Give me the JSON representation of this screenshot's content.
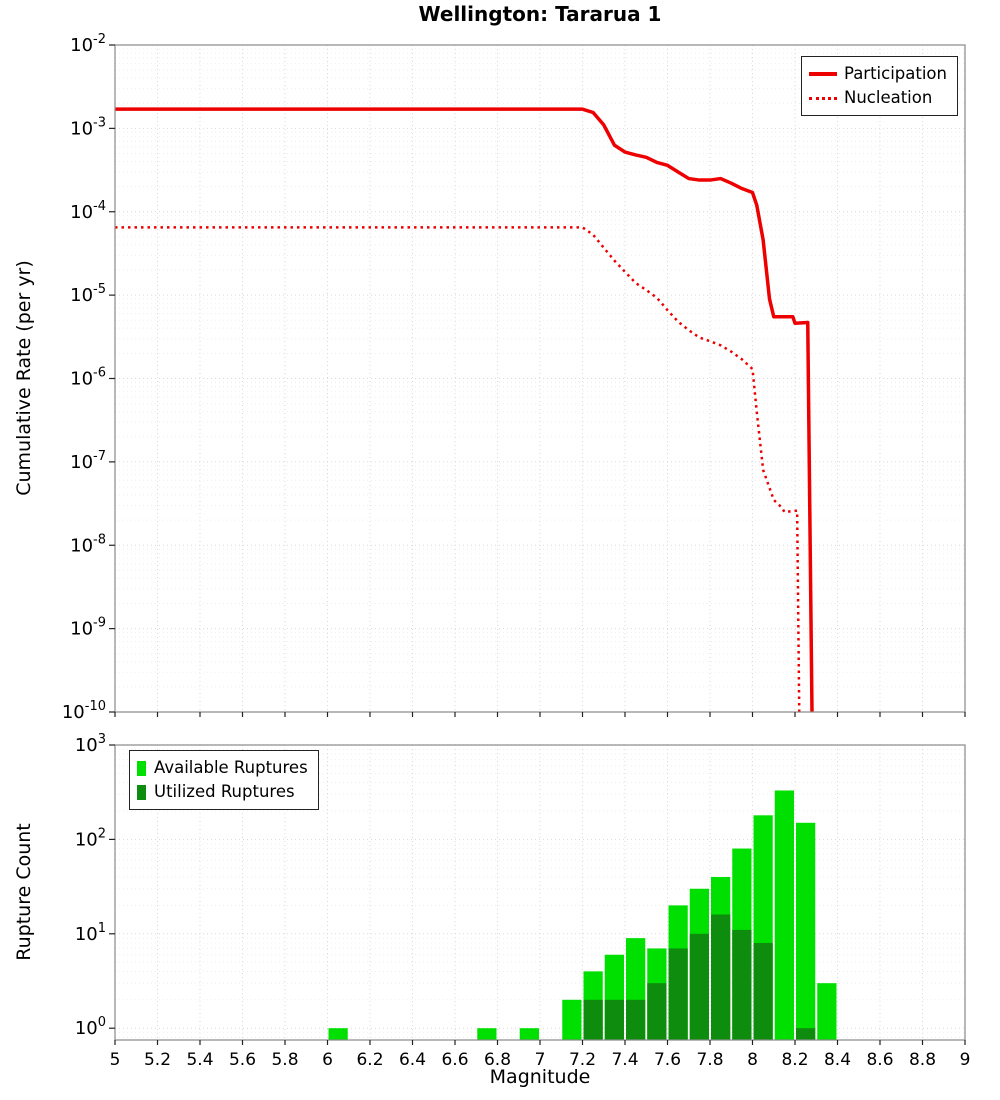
{
  "figure": {
    "title": "Wellington: Tararua 1",
    "xlabel": "Magnitude"
  },
  "chart_data": [
    {
      "type": "line",
      "title": "Wellington: Tararua 1",
      "ylabel": "Cumulative Rate (per yr)",
      "xlabel": "",
      "xlim": [
        5,
        9
      ],
      "x_tick_step": 0.2,
      "yscale": "log",
      "ylim": [
        1e-10,
        0.01
      ],
      "grid": true,
      "legend_position": "top-right",
      "series": [
        {
          "name": "Participation",
          "color": "#ee0000",
          "style": "solid",
          "width": 3.5,
          "points": [
            [
              5.0,
              0.0017
            ],
            [
              7.2,
              0.0017
            ],
            [
              7.25,
              0.00155
            ],
            [
              7.3,
              0.0011
            ],
            [
              7.35,
              0.00063
            ],
            [
              7.4,
              0.00052
            ],
            [
              7.45,
              0.00048
            ],
            [
              7.5,
              0.00045
            ],
            [
              7.55,
              0.00039
            ],
            [
              7.6,
              0.00036
            ],
            [
              7.65,
              0.0003
            ],
            [
              7.7,
              0.00025
            ],
            [
              7.75,
              0.00024
            ],
            [
              7.8,
              0.00024
            ],
            [
              7.85,
              0.00025
            ],
            [
              7.9,
              0.00022
            ],
            [
              7.95,
              0.00019
            ],
            [
              8.0,
              0.00017
            ],
            [
              8.02,
              0.00012
            ],
            [
              8.05,
              4.6e-05
            ],
            [
              8.08,
              9e-06
            ],
            [
              8.1,
              5.5e-06
            ],
            [
              8.19,
              5.5e-06
            ],
            [
              8.2,
              4.6e-06
            ],
            [
              8.26,
              4.7e-06
            ],
            [
              8.28,
              1e-10
            ]
          ]
        },
        {
          "name": "Nucleation",
          "color": "#ee0000",
          "style": "dotted",
          "width": 2.5,
          "points": [
            [
              5.0,
              6.5e-05
            ],
            [
              7.2,
              6.5e-05
            ],
            [
              7.25,
              5.3e-05
            ],
            [
              7.3,
              3.7e-05
            ],
            [
              7.35,
              2.6e-05
            ],
            [
              7.4,
              1.9e-05
            ],
            [
              7.45,
              1.4e-05
            ],
            [
              7.5,
              1.15e-05
            ],
            [
              7.55,
              9.3e-06
            ],
            [
              7.6,
              6.6e-06
            ],
            [
              7.65,
              4.8e-06
            ],
            [
              7.7,
              3.8e-06
            ],
            [
              7.75,
              3.1e-06
            ],
            [
              7.8,
              2.8e-06
            ],
            [
              7.85,
              2.5e-06
            ],
            [
              7.9,
              2.1e-06
            ],
            [
              7.95,
              1.7e-06
            ],
            [
              8.0,
              1.3e-06
            ],
            [
              8.02,
              4e-07
            ],
            [
              8.05,
              8e-08
            ],
            [
              8.1,
              3.5e-08
            ],
            [
              8.14,
              2.8e-08
            ],
            [
              8.15,
              2.5e-08
            ],
            [
              8.21,
              2.6e-08
            ],
            [
              8.22,
              1e-10
            ]
          ]
        }
      ]
    },
    {
      "type": "bar",
      "title": "",
      "ylabel": "Rupture Count",
      "xlabel": "Magnitude",
      "xlim": [
        5,
        9
      ],
      "x_tick_step": 0.2,
      "yscale": "log",
      "ylim": [
        0.75,
        1000
      ],
      "bin_width": 0.1,
      "grid": true,
      "legend_position": "top-left",
      "categories": [
        6.05,
        6.75,
        6.95,
        7.15,
        7.25,
        7.35,
        7.45,
        7.55,
        7.65,
        7.75,
        7.85,
        7.95,
        8.05,
        8.15,
        8.25,
        8.35
      ],
      "series": [
        {
          "name": "Available Ruptures",
          "color": "#00e000",
          "values": [
            1,
            1,
            1,
            2,
            4,
            6,
            9,
            7,
            20,
            30,
            40,
            80,
            180,
            330,
            150,
            3
          ]
        },
        {
          "name": "Utilized Ruptures",
          "color": "#0d8c0d",
          "values": [
            0,
            0,
            0,
            0,
            2,
            2,
            2,
            3,
            7,
            10,
            16,
            11,
            8,
            0,
            1,
            0
          ]
        }
      ]
    }
  ]
}
